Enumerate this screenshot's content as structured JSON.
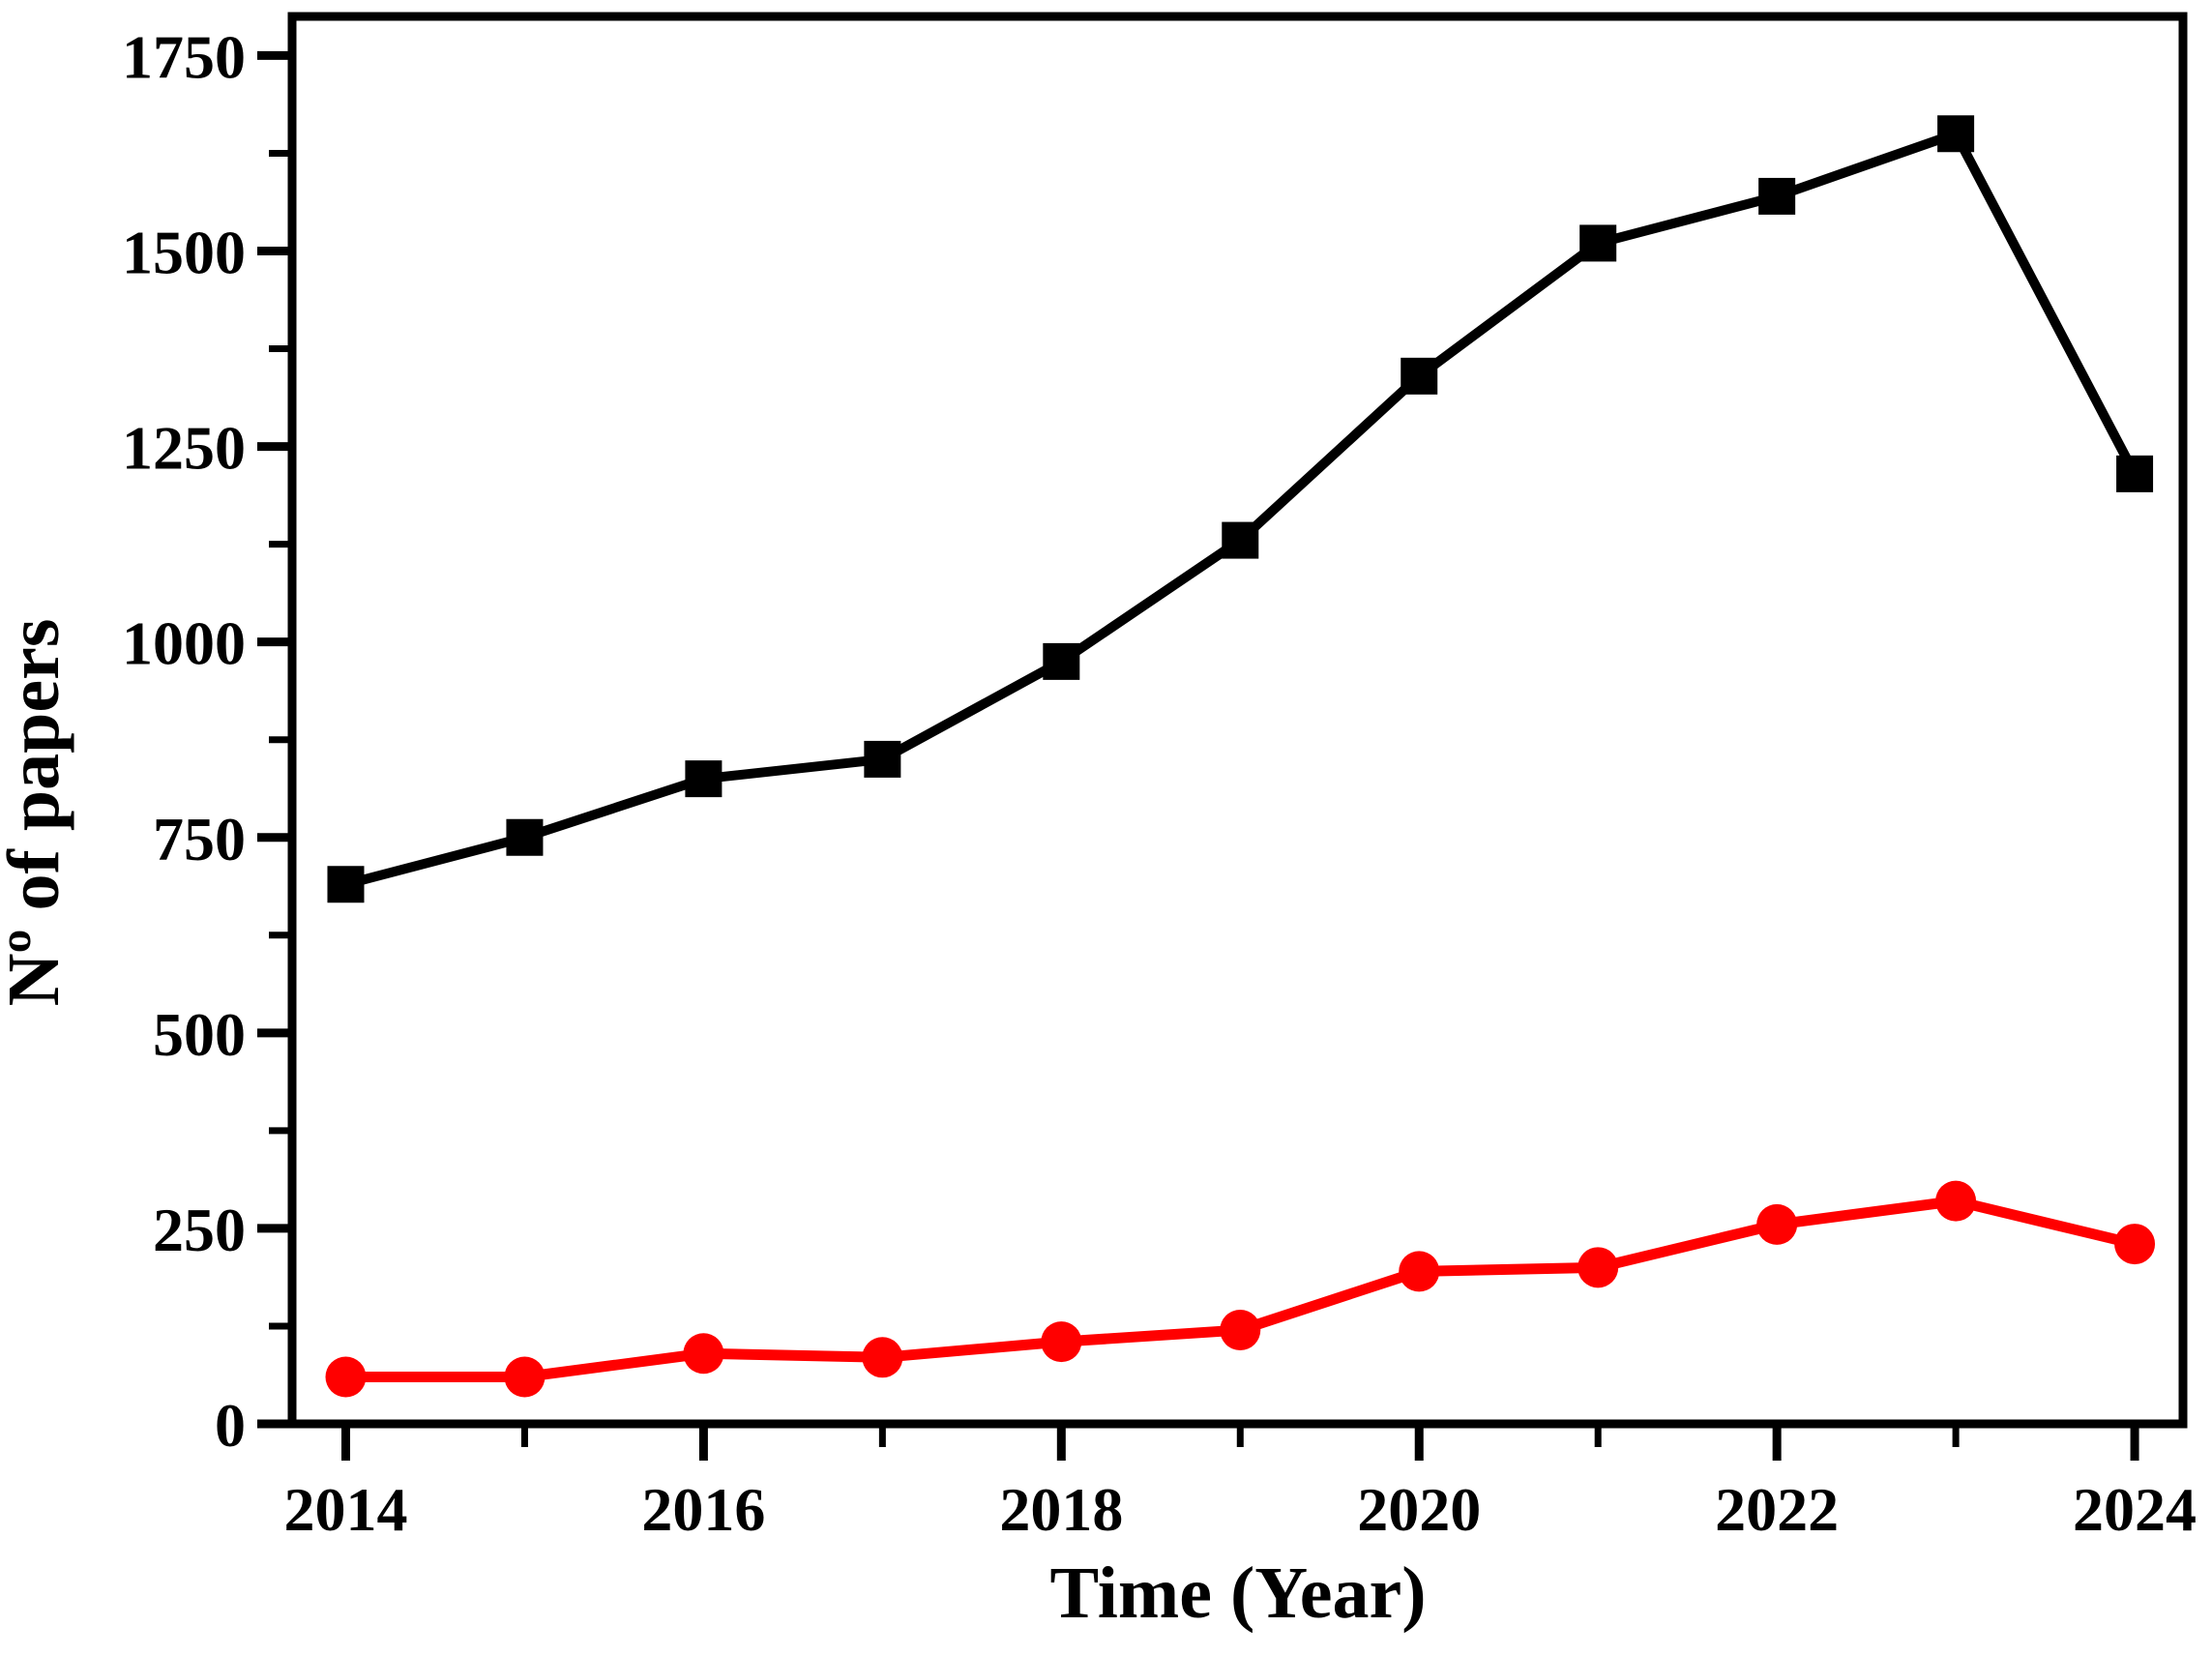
{
  "figure": {
    "background": "#ffffff"
  },
  "chart_data": {
    "type": "line",
    "title": "",
    "xlabel": "Time (Year)",
    "ylabel": "Nº of papers",
    "x": [
      2014,
      2015,
      2016,
      2017,
      2018,
      2019,
      2020,
      2021,
      2022,
      2023,
      2024
    ],
    "series": [
      {
        "marker": "square",
        "color": "#000000",
        "values": [
          690,
          750,
          825,
          850,
          975,
          1130,
          1340,
          1510,
          1570,
          1650,
          1215
        ]
      },
      {
        "marker": "circle",
        "color": "#ff0000",
        "values": [
          60,
          60,
          90,
          85,
          105,
          120,
          195,
          200,
          255,
          285,
          230
        ]
      }
    ],
    "ylim": [
      0,
      1750
    ],
    "y_major_ticks": [
      0,
      250,
      500,
      750,
      1000,
      1250,
      1500,
      1750
    ],
    "y_minor_step": 125,
    "x_major_ticks": [
      2014,
      2016,
      2018,
      2020,
      2022,
      2024
    ],
    "x_minor_ticks": [
      2015,
      2017,
      2019,
      2021,
      2023
    ],
    "grid": false,
    "legend": "none",
    "frame": "full-box",
    "tick_direction": "out"
  }
}
